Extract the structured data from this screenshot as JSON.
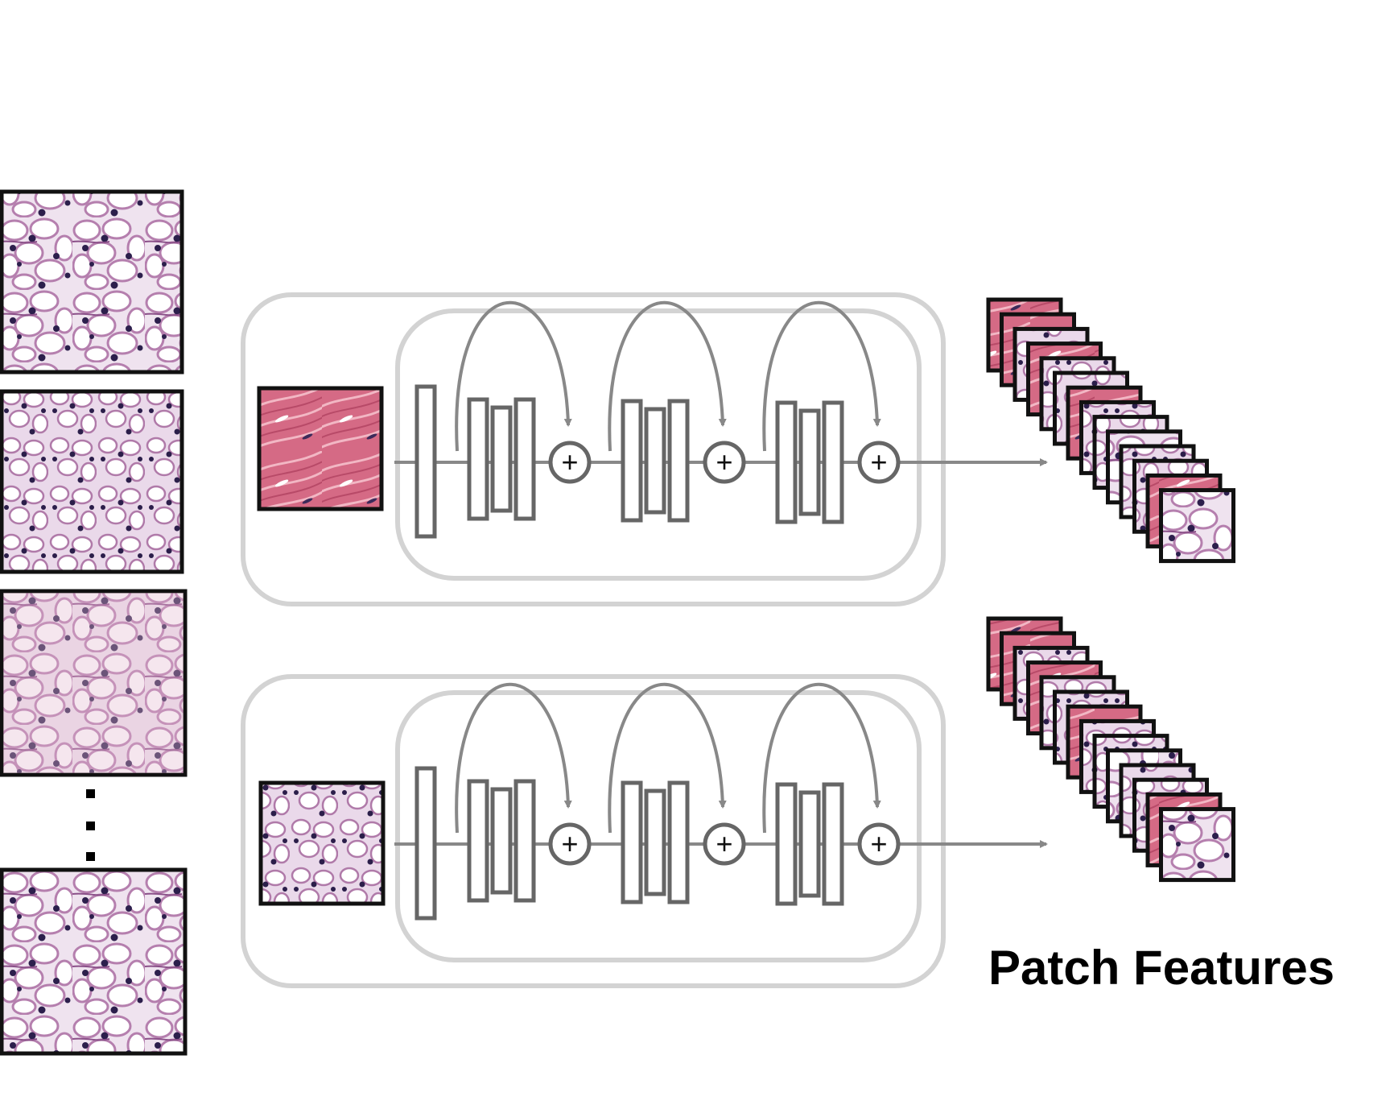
{
  "diagram": {
    "output_label": "Patch Features",
    "input_patch_count_shown": 4,
    "feature_stack_size": 14,
    "rows": [
      {
        "name": "top-row",
        "input_patch_kind": "stroma",
        "residual_blocks": 3,
        "skip_symbol": "+"
      },
      {
        "name": "bottom-row",
        "input_patch_kind": "clear-cell",
        "residual_blocks": 3,
        "skip_symbol": "+"
      }
    ]
  },
  "colors": {
    "network_stroke": "#666666",
    "container_stroke": "#d3d3d3",
    "arrow": "#888888",
    "stroma": "#d66b86",
    "clear_cell_bg": "#efe4ef",
    "nucleus": "#2e2050",
    "cell_wall": "#b07aa9",
    "text": "#000000"
  }
}
